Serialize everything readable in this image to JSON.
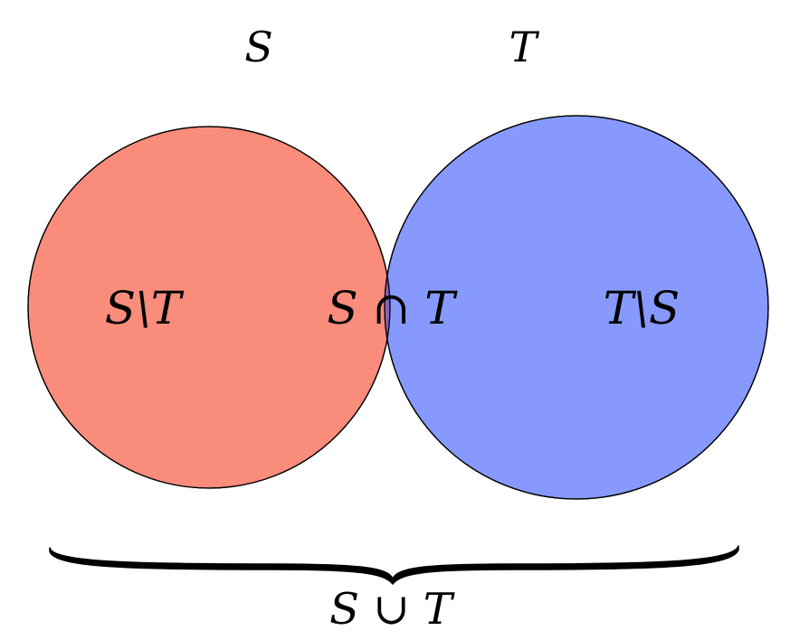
{
  "sets": {
    "left": {
      "name": "S",
      "fill": "#fa8c7c"
    },
    "right": {
      "name": "T",
      "fill": "#8799fc"
    }
  },
  "regions": {
    "left_only": "S\\T",
    "intersection": "S ∩ T",
    "right_only": "T\\S"
  },
  "union": {
    "label": "S ∪ T"
  },
  "colors": {
    "intersection": "#8462bf",
    "outline": "#000000",
    "brace": "#000000"
  }
}
